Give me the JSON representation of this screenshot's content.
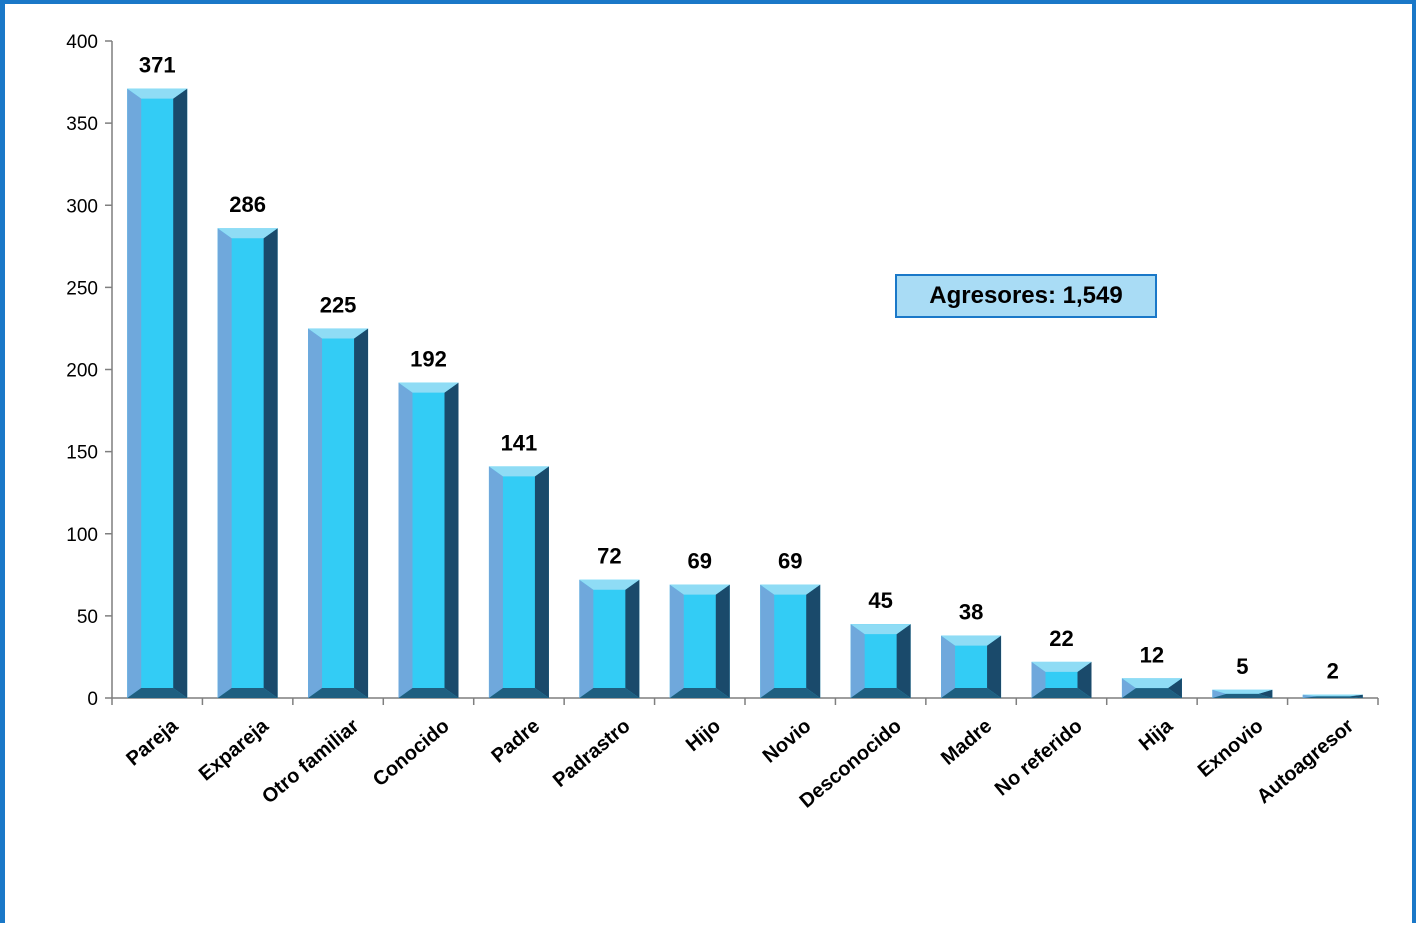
{
  "chart_data": {
    "type": "bar",
    "categories": [
      "Pareja",
      "Expareja",
      "Otro familiar",
      "Conocido",
      "Padre",
      "Padrastro",
      "Hijo",
      "Novio",
      "Desconocido",
      "Madre",
      "No referido",
      "Hija",
      "Exnovio",
      "Autoagresor"
    ],
    "values": [
      371,
      286,
      225,
      192,
      141,
      72,
      69,
      69,
      45,
      38,
      22,
      12,
      5,
      2
    ],
    "value_labels": [
      "371",
      "286",
      "225",
      "192",
      "141",
      "72",
      "69",
      "69",
      "45",
      "38",
      "22",
      "12",
      "5",
      "2"
    ],
    "yticks": [
      "0",
      "50",
      "100",
      "150",
      "200",
      "250",
      "300",
      "350",
      "400"
    ],
    "ytick_values": [
      0,
      50,
      100,
      150,
      200,
      250,
      300,
      350,
      400
    ],
    "ylim": [
      0,
      400
    ],
    "grid": false,
    "title": "",
    "xlabel": "",
    "ylabel": "",
    "annotation": "Agresores: 1,549"
  },
  "colors": {
    "frame": "#1a78c8",
    "bar_face": "#33ccf5",
    "bar_left": "#6fa8dc",
    "bar_right": "#1a4a6b",
    "bar_top": "#8fdcf5",
    "bar_bottom": "#1f5f80",
    "annotation_fill": "#a9dcf5"
  }
}
